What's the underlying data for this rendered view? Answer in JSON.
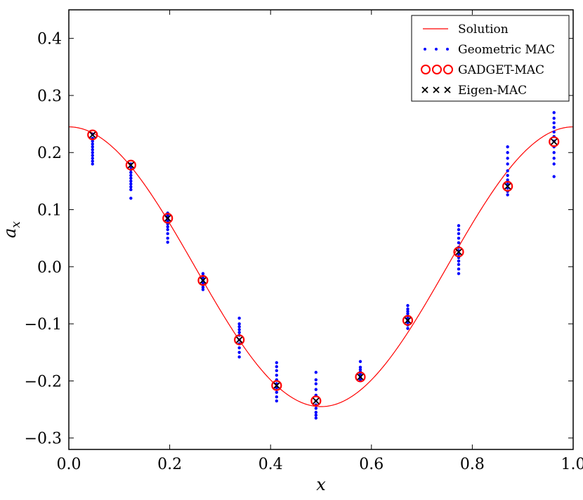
{
  "chart_data": {
    "type": "scatter",
    "xlabel": "x",
    "ylabel": "a",
    "ylabel_subscript": "x",
    "xlim": [
      0.0,
      1.0
    ],
    "ylim": [
      -0.32,
      0.45
    ],
    "xticks": [
      {
        "value": 0.0,
        "label": "0.0"
      },
      {
        "value": 0.2,
        "label": "0.2"
      },
      {
        "value": 0.4,
        "label": "0.4"
      },
      {
        "value": 0.6,
        "label": "0.6"
      },
      {
        "value": 0.8,
        "label": "0.8"
      },
      {
        "value": 1.0,
        "label": "1.0"
      }
    ],
    "yticks": [
      {
        "value": -0.3,
        "label": "−0.3"
      },
      {
        "value": -0.2,
        "label": "−0.2"
      },
      {
        "value": -0.1,
        "label": "−0.1"
      },
      {
        "value": 0.0,
        "label": "0.0"
      },
      {
        "value": 0.1,
        "label": "0.1"
      },
      {
        "value": 0.2,
        "label": "0.2"
      },
      {
        "value": 0.3,
        "label": "0.3"
      },
      {
        "value": 0.4,
        "label": "0.4"
      }
    ],
    "legend": {
      "position": "top-right",
      "entries": [
        {
          "label": "Solution",
          "marker": "line",
          "color": "#ff0000"
        },
        {
          "label": "Geometric MAC",
          "marker": "dot",
          "color": "#0000ff"
        },
        {
          "label": "GADGET-MAC",
          "marker": "circle",
          "color": "#ff0000"
        },
        {
          "label": "Eigen-MAC",
          "marker": "x",
          "color": "#000000"
        }
      ]
    },
    "solution": {
      "name": "Solution",
      "color": "#ff0000",
      "function": "a_x = 0.245 * cos(2*pi*x)",
      "amplitude": 0.245
    },
    "points_x": [
      0.047,
      0.123,
      0.196,
      0.266,
      0.338,
      0.412,
      0.49,
      0.578,
      0.672,
      0.773,
      0.87,
      0.962
    ],
    "gadget_mac": {
      "name": "GADGET-MAC",
      "color": "#ff0000",
      "y": [
        0.231,
        0.178,
        0.085,
        -0.024,
        -0.128,
        -0.208,
        -0.235,
        -0.193,
        -0.094,
        0.026,
        0.141,
        0.219
      ]
    },
    "eigen_mac": {
      "name": "Eigen-MAC",
      "color": "#000000",
      "y": [
        0.231,
        0.178,
        0.085,
        -0.024,
        -0.128,
        -0.208,
        -0.235,
        -0.193,
        -0.094,
        0.026,
        0.141,
        0.219
      ]
    },
    "geometric_mac": {
      "name": "Geometric MAC",
      "color": "#0000ff",
      "groups": [
        {
          "x": 0.047,
          "y": [
            0.18,
            0.185,
            0.19,
            0.195,
            0.2,
            0.205,
            0.21,
            0.215,
            0.22,
            0.225,
            0.232
          ]
        },
        {
          "x": 0.123,
          "y": [
            0.12,
            0.135,
            0.14,
            0.145,
            0.15,
            0.155,
            0.16,
            0.165,
            0.17,
            0.175,
            0.18
          ]
        },
        {
          "x": 0.196,
          "y": [
            0.043,
            0.05,
            0.058,
            0.065,
            0.07,
            0.075,
            0.08,
            0.085,
            0.09,
            0.094
          ]
        },
        {
          "x": 0.266,
          "y": [
            -0.04,
            -0.036,
            -0.032,
            -0.028,
            -0.024,
            -0.02,
            -0.016,
            -0.012
          ]
        },
        {
          "x": 0.338,
          "y": [
            -0.158,
            -0.15,
            -0.142,
            -0.135,
            -0.128,
            -0.12,
            -0.115,
            -0.11,
            -0.105,
            -0.1,
            -0.09
          ]
        },
        {
          "x": 0.412,
          "y": [
            -0.235,
            -0.228,
            -0.22,
            -0.212,
            -0.205,
            -0.198,
            -0.19,
            -0.182,
            -0.175,
            -0.168
          ]
        },
        {
          "x": 0.49,
          "y": [
            -0.265,
            -0.26,
            -0.255,
            -0.248,
            -0.242,
            -0.235,
            -0.225,
            -0.215,
            -0.205,
            -0.198,
            -0.185
          ]
        },
        {
          "x": 0.578,
          "y": [
            -0.198,
            -0.193,
            -0.188,
            -0.184,
            -0.18,
            -0.176,
            -0.166
          ]
        },
        {
          "x": 0.672,
          "y": [
            -0.108,
            -0.102,
            -0.098,
            -0.094,
            -0.09,
            -0.086,
            -0.082,
            -0.078,
            -0.074,
            -0.068
          ]
        },
        {
          "x": 0.773,
          "y": [
            -0.012,
            -0.004,
            0.004,
            0.01,
            0.016,
            0.022,
            0.028,
            0.034,
            0.042,
            0.05,
            0.058,
            0.065,
            0.072
          ]
        },
        {
          "x": 0.87,
          "y": [
            0.126,
            0.132,
            0.138,
            0.145,
            0.152,
            0.16,
            0.168,
            0.18,
            0.19,
            0.2,
            0.21
          ]
        },
        {
          "x": 0.962,
          "y": [
            0.158,
            0.18,
            0.19,
            0.2,
            0.21,
            0.22,
            0.228,
            0.236,
            0.244,
            0.252,
            0.26,
            0.27
          ]
        }
      ]
    }
  }
}
